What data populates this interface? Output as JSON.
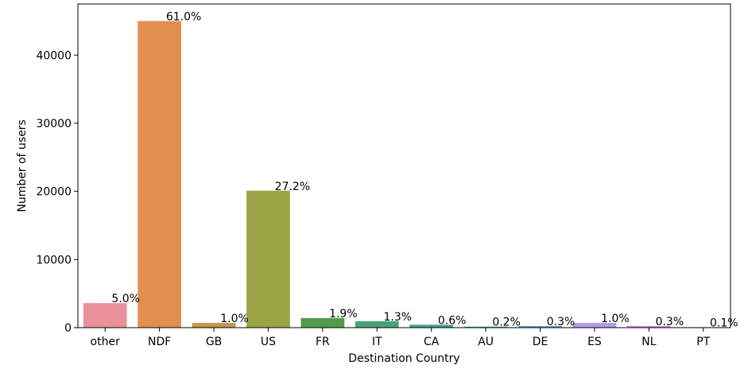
{
  "chart_data": {
    "type": "bar",
    "xlabel": "Destination Country",
    "ylabel": "Number of users",
    "ylim": [
      0,
      47500
    ],
    "yticks": [
      0,
      10000,
      20000,
      30000,
      40000
    ],
    "grid": false,
    "legend": "none",
    "categories": [
      "other",
      "NDF",
      "GB",
      "US",
      "FR",
      "IT",
      "CA",
      "AU",
      "DE",
      "ES",
      "NL",
      "PT"
    ],
    "values": [
      3600,
      45000,
      700,
      20100,
      1400,
      950,
      430,
      150,
      230,
      700,
      230,
      70
    ],
    "labels": [
      "5.0%",
      "61.0%",
      "1.0%",
      "27.2%",
      "1.9%",
      "1.3%",
      "0.6%",
      "0.2%",
      "0.3%",
      "1.0%",
      "0.3%",
      "0.1%"
    ],
    "colors": [
      "#e8919b",
      "#e08f51",
      "#bf9a4a",
      "#9aa444",
      "#4f9d4a",
      "#45a27b",
      "#45a09b",
      "#47a0b4",
      "#5b9ed8",
      "#b29be8",
      "#df7fe6",
      "#e68bb6"
    ]
  }
}
